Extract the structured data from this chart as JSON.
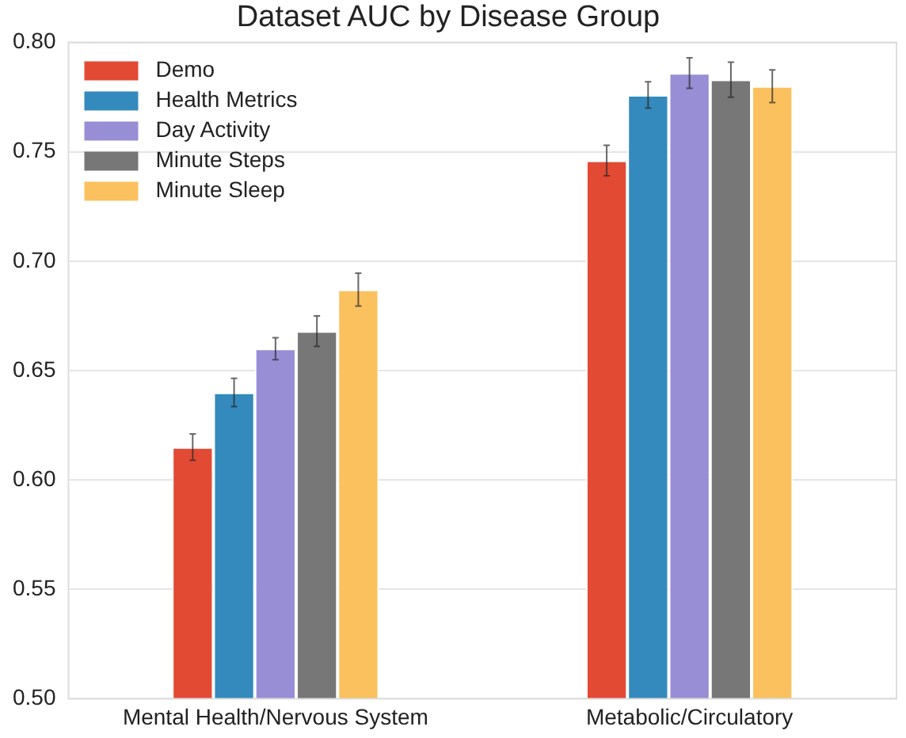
{
  "chart_data": {
    "type": "bar",
    "title": "Dataset AUC by Disease Group",
    "categories": [
      "Mental Health/Nervous System",
      "Metabolic/Circulatory"
    ],
    "series": [
      {
        "name": "Demo",
        "color": "#e24a33",
        "values": [
          0.615,
          0.746
        ],
        "errors": [
          0.006,
          0.007
        ]
      },
      {
        "name": "Health Metrics",
        "color": "#348abd",
        "values": [
          0.64,
          0.776
        ],
        "errors": [
          0.0065,
          0.006
        ]
      },
      {
        "name": "Day Activity",
        "color": "#988ed5",
        "values": [
          0.66,
          0.786
        ],
        "errors": [
          0.005,
          0.007
        ]
      },
      {
        "name": "Minute Steps",
        "color": "#777777",
        "values": [
          0.668,
          0.783
        ],
        "errors": [
          0.007,
          0.008
        ]
      },
      {
        "name": "Minute Sleep",
        "color": "#fbc15e",
        "values": [
          0.687,
          0.78
        ],
        "errors": [
          0.0075,
          0.0075
        ]
      }
    ],
    "ylim": [
      0.5,
      0.8
    ],
    "yticks": [
      {
        "value": 0.5,
        "label": "0.50"
      },
      0.55,
      {
        "value": 0.6,
        "label": "0.60"
      },
      0.65,
      {
        "value": 0.7,
        "label": "0.70"
      },
      0.75,
      {
        "value": 0.8,
        "label": "0.80"
      }
    ],
    "grid": "y",
    "legend": "top left"
  }
}
